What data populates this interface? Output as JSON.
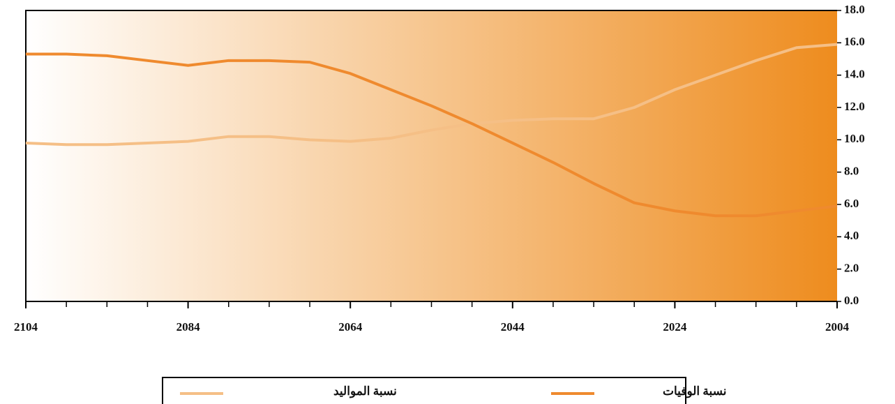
{
  "chart_data": {
    "type": "line",
    "x": [
      2004,
      2009,
      2014,
      2019,
      2024,
      2029,
      2034,
      2039,
      2044,
      2049,
      2054,
      2059,
      2064,
      2069,
      2074,
      2079,
      2084,
      2089,
      2094,
      2099,
      2104
    ],
    "series": [
      {
        "name": "نسبة المواليد",
        "color": "#f5bf86",
        "values": [
          15.9,
          15.7,
          14.9,
          14.0,
          13.1,
          12.0,
          11.3,
          11.3,
          11.2,
          11.0,
          10.6,
          10.1,
          9.9,
          10.0,
          10.2,
          10.2,
          9.9,
          9.8,
          9.7,
          9.7,
          9.8
        ]
      },
      {
        "name": "نسبة الوفيات",
        "color": "#ef8a2e",
        "values": [
          5.9,
          5.6,
          5.3,
          5.3,
          5.6,
          6.1,
          7.3,
          8.6,
          9.8,
          11.0,
          12.1,
          13.1,
          14.1,
          14.8,
          14.9,
          14.9,
          14.6,
          14.9,
          15.2,
          15.3,
          15.3
        ]
      }
    ],
    "xlim": [
      2104,
      2004
    ],
    "xticks": [
      2104,
      2084,
      2064,
      2044,
      2024,
      2004
    ],
    "xminorticks": [
      2104,
      2099,
      2094,
      2089,
      2084,
      2079,
      2074,
      2069,
      2064,
      2059,
      2054,
      2049,
      2044,
      2039,
      2034,
      2029,
      2024,
      2019,
      2014,
      2009,
      2004
    ],
    "ylim": [
      0,
      18
    ],
    "yticks": [
      {
        "value": 0,
        "label": "0.0"
      },
      {
        "value": 2,
        "label": "2.0"
      },
      {
        "value": 4,
        "label": "4.0"
      },
      {
        "value": 6,
        "label": "6.0"
      },
      {
        "value": 8,
        "label": "8.0"
      },
      {
        "value": 10,
        "label": "10.0"
      },
      {
        "value": 12,
        "label": "12.0"
      },
      {
        "value": 14,
        "label": "14.0"
      },
      {
        "value": 16,
        "label": "16.0"
      },
      {
        "value": 18,
        "label": "18.0"
      }
    ],
    "background_gradient": [
      "#ffffff",
      "#ee8c1e"
    ]
  }
}
